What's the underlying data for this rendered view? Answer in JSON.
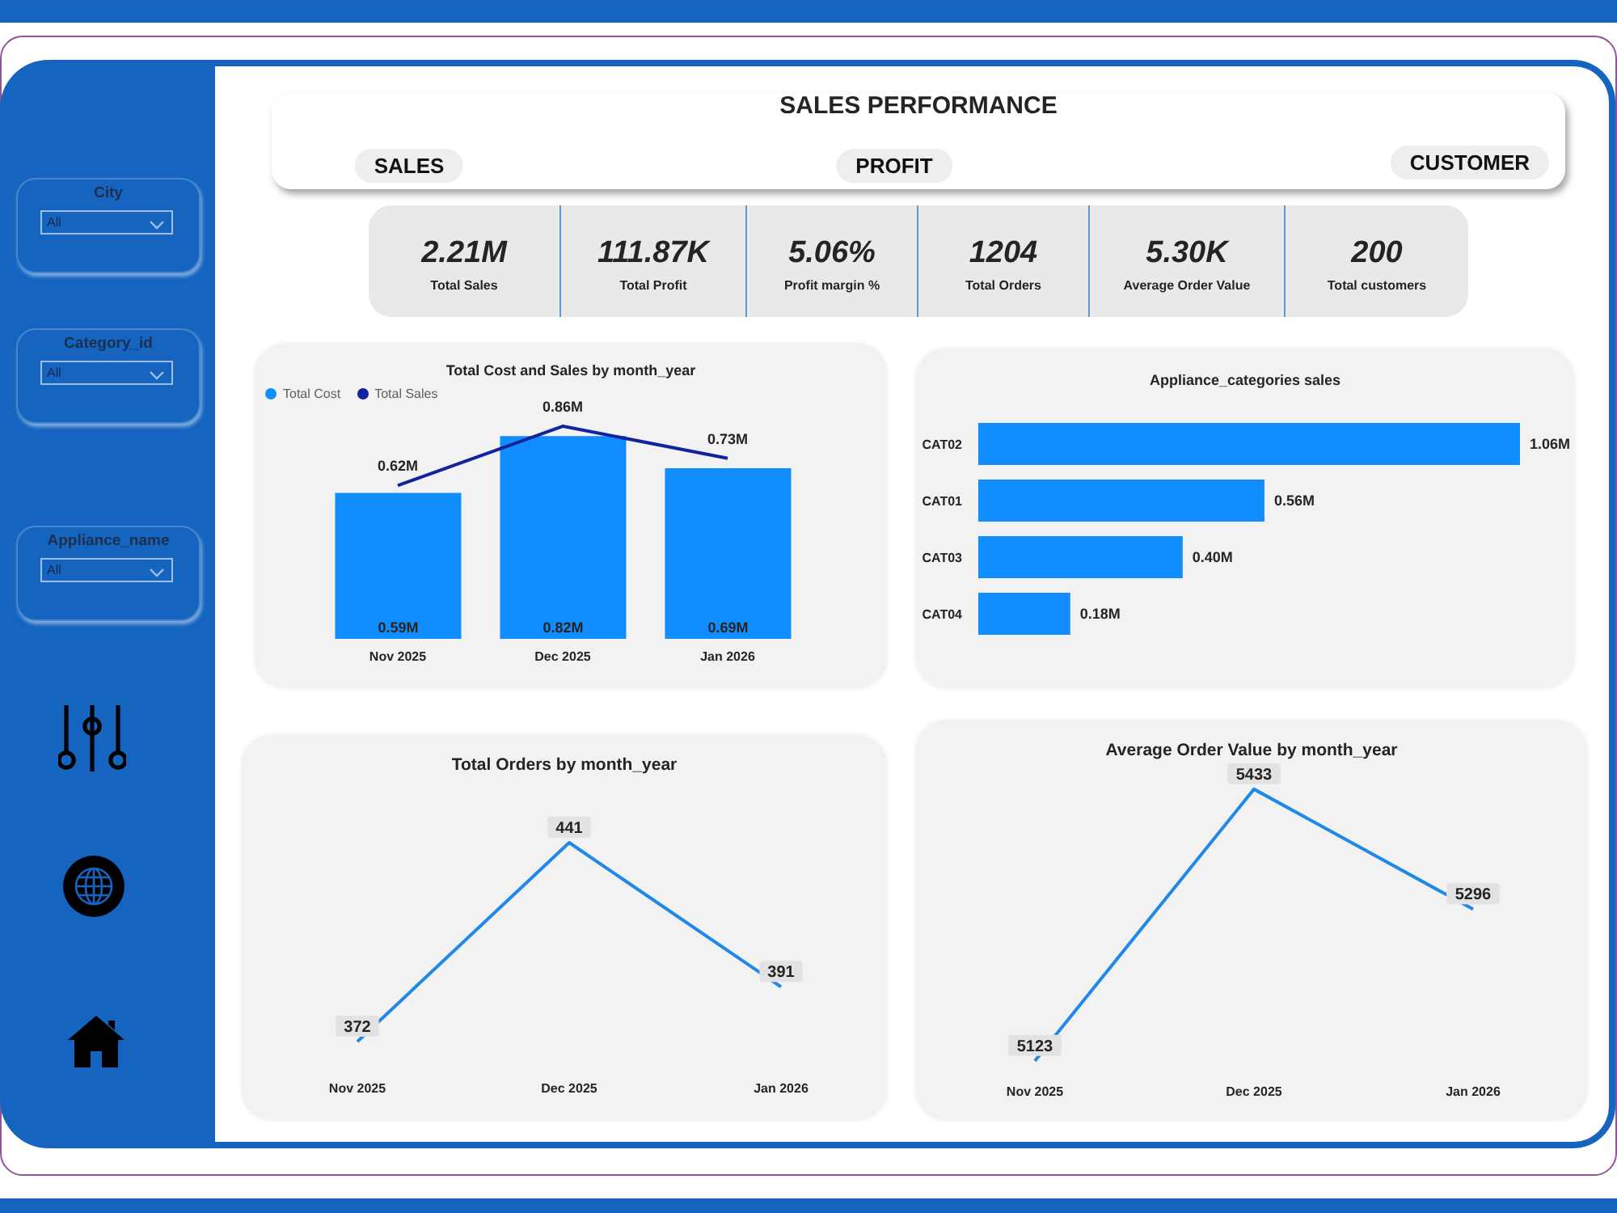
{
  "chart_data": [
    {
      "type": "other",
      "title": "SALES PERFORMANCE",
      "annotations": [
        "SALES",
        "PROFIT",
        "CUSTOMER"
      ]
    },
    {
      "type": "other",
      "annotations": [
        "City",
        "All",
        "Category_id",
        "All",
        "Appliance_name",
        "All"
      ]
    },
    {
      "type": "other",
      "annotations": [
        "2.21M",
        "Total Sales",
        "111.87K",
        "Total Profit",
        "5.06%",
        "Profit margin %",
        "1204",
        "Total Orders",
        "5.30K",
        "Average Order Value",
        "200",
        "Total customers"
      ]
    },
    {
      "type": "bar",
      "title": "Total Cost and Sales by month_year",
      "categories": [
        "Nov 2025",
        "Dec 2025",
        "Jan 2026"
      ],
      "series": [
        {
          "name": "Total Cost",
          "type": "bar",
          "color": "#118dff",
          "values": [
            0.59,
            0.82,
            0.69
          ],
          "value_labels": [
            "0.59M",
            "0.82M",
            "0.69M"
          ]
        },
        {
          "name": "Total Sales",
          "type": "line",
          "color": "#12239e",
          "values": [
            0.62,
            0.86,
            0.73
          ],
          "value_labels": [
            "0.62M",
            "0.86M",
            "0.73M"
          ]
        }
      ],
      "legend": "top left",
      "tick_labels": "x",
      "marker": "none"
    },
    {
      "type": "bar",
      "orientation": "horizontal",
      "title": "Appliance_categories sales",
      "categories": [
        "CAT02",
        "CAT01",
        "CAT03",
        "CAT04"
      ],
      "values": [
        1.06,
        0.56,
        0.4,
        0.18
      ],
      "value_labels": [
        "1.06M",
        "0.56M",
        "0.40M",
        "0.18M"
      ],
      "color": "#118dff",
      "tick_labels": "y"
    },
    {
      "type": "line",
      "title": "Total Orders by month_year",
      "categories": [
        "Nov 2025",
        "Dec 2025",
        "Jan 2026"
      ],
      "values": [
        372,
        441,
        391
      ],
      "color": "#2088e8",
      "data_labels": true,
      "tick_labels": "x",
      "marker": "none"
    },
    {
      "type": "line",
      "title": "Average Order Value by month_year",
      "categories": [
        "Nov 2025",
        "Dec 2025",
        "Jan 2026"
      ],
      "values": [
        5123,
        5433,
        5296
      ],
      "color": "#2088e8",
      "data_labels": true,
      "tick_labels": "x",
      "marker": "none"
    }
  ]
}
